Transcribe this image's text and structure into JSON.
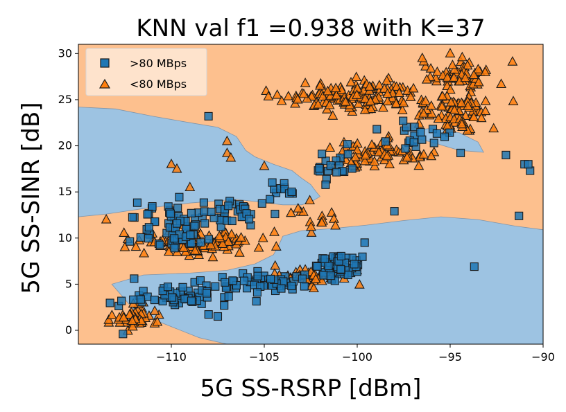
{
  "chart_data": {
    "type": "scatter",
    "title": "KNN val f1 =0.938 with K=37",
    "xlabel": "5G SS-RSRP [dBm]",
    "ylabel": "5G SS-SINR [dB]",
    "xlim": [
      -115,
      -90
    ],
    "ylim": [
      -1.5,
      31
    ],
    "x_ticks": [
      -110,
      -105,
      -100,
      -95,
      -90
    ],
    "y_ticks": [
      0,
      5,
      10,
      15,
      20,
      25,
      30
    ],
    "x_tick_labels": [
      "−110",
      "−105",
      "−100",
      "−95",
      "−90"
    ],
    "y_tick_labels": [
      "0",
      "5",
      "10",
      "15",
      "20",
      "25",
      "30"
    ],
    "grid": false,
    "legend_position": "top-left",
    "colors": {
      "region_high": "#9dc3e2",
      "region_low": "#fdc08e",
      "high_marker": "#1f77b4",
      "low_marker": "#ff7f0e",
      "edge": "#1a1a1a"
    },
    "series": [
      {
        "name": ">80 MBps",
        "marker": "square",
        "clusters": [
          {
            "cx": -110.0,
            "cy": 11.5,
            "sx": 1.4,
            "sy": 2.0,
            "n": 70
          },
          {
            "cx": -106.5,
            "cy": 12.8,
            "sx": 1.0,
            "sy": 0.9,
            "n": 30
          },
          {
            "cx": -109.5,
            "cy": 3.8,
            "sx": 1.5,
            "sy": 1.0,
            "n": 60
          },
          {
            "cx": -105.0,
            "cy": 5.0,
            "sx": 1.5,
            "sy": 0.9,
            "n": 55
          },
          {
            "cx": -101.0,
            "cy": 7.2,
            "sx": 0.8,
            "sy": 1.0,
            "n": 55
          },
          {
            "cx": -101.5,
            "cy": 17.5,
            "sx": 1.0,
            "sy": 1.5,
            "n": 20
          },
          {
            "cx": -97.0,
            "cy": 21.0,
            "sx": 1.5,
            "sy": 1.0,
            "n": 20
          },
          {
            "cx": -104.2,
            "cy": 15.3,
            "sx": 0.6,
            "sy": 0.6,
            "n": 10
          }
        ],
        "points": [
          {
            "x": -108.0,
            "y": 23.2
          },
          {
            "x": -98.0,
            "y": 12.9
          },
          {
            "x": -93.7,
            "y": 6.9
          },
          {
            "x": -92.0,
            "y": 19.0
          },
          {
            "x": -91.0,
            "y": 18.0
          },
          {
            "x": -90.7,
            "y": 17.3
          },
          {
            "x": -90.8,
            "y": 18.0
          },
          {
            "x": -91.3,
            "y": 12.4
          },
          {
            "x": -112.6,
            "y": -0.4
          },
          {
            "x": -112.0,
            "y": 5.6
          },
          {
            "x": -107.5,
            "y": 1.5
          },
          {
            "x": -99.6,
            "y": 9.5
          }
        ]
      },
      {
        "name": "<80 MBps",
        "marker": "triangle",
        "clusters": [
          {
            "cx": -100.0,
            "cy": 25.5,
            "sx": 2.5,
            "sy": 1.2,
            "n": 140
          },
          {
            "cx": -94.5,
            "cy": 27.6,
            "sx": 1.0,
            "sy": 1.0,
            "n": 60
          },
          {
            "cx": -94.5,
            "cy": 23.5,
            "sx": 1.2,
            "sy": 1.2,
            "n": 80
          },
          {
            "cx": -99.0,
            "cy": 19.0,
            "sx": 1.8,
            "sy": 1.0,
            "n": 70
          },
          {
            "cx": -108.5,
            "cy": 9.5,
            "sx": 1.8,
            "sy": 1.0,
            "n": 110
          },
          {
            "cx": -112.0,
            "cy": 1.2,
            "sx": 1.0,
            "sy": 0.8,
            "n": 45
          },
          {
            "cx": -102.5,
            "cy": 5.8,
            "sx": 1.3,
            "sy": 0.8,
            "n": 40
          },
          {
            "cx": -102.5,
            "cy": 12.2,
            "sx": 0.8,
            "sy": 1.2,
            "n": 15
          }
        ],
        "points": [
          {
            "x": -113.5,
            "y": 12.0
          },
          {
            "x": -112.5,
            "y": 9.0
          },
          {
            "x": -107.0,
            "y": 20.5
          },
          {
            "x": -107.0,
            "y": 19.2
          },
          {
            "x": -110.0,
            "y": 18.0
          },
          {
            "x": -109.7,
            "y": 17.5
          },
          {
            "x": -109.0,
            "y": 15.5
          },
          {
            "x": -103.2,
            "y": 25.0
          },
          {
            "x": -102.0,
            "y": 26.5
          },
          {
            "x": -96.5,
            "y": 29.5
          },
          {
            "x": -95.0,
            "y": 30.0
          },
          {
            "x": -105.0,
            "y": 17.8
          },
          {
            "x": -111.5,
            "y": 3.0
          },
          {
            "x": -106.8,
            "y": 18.7
          }
        ]
      }
    ],
    "decision_regions": {
      "background_class": "<80 MBps",
      "regions": [
        {
          "class": ">80 MBps",
          "polygon": [
            [
              -115,
              24.2
            ],
            [
              -113,
              24.0
            ],
            [
              -111,
              23.2
            ],
            [
              -109,
              22.5
            ],
            [
              -107.5,
              22.0
            ],
            [
              -106.5,
              21.0
            ],
            [
              -106,
              19.5
            ],
            [
              -105.5,
              18.8
            ],
            [
              -104.5,
              18.0
            ],
            [
              -103.5,
              17.3
            ],
            [
              -103,
              16.5
            ],
            [
              -102.5,
              15.8
            ],
            [
              -102.2,
              15.0
            ],
            [
              -102,
              14.5
            ],
            [
              -102.5,
              13.9
            ],
            [
              -103,
              13.6
            ],
            [
              -104,
              13.6
            ],
            [
              -106.5,
              14.2
            ],
            [
              -109,
              13.8
            ],
            [
              -111.5,
              13.2
            ],
            [
              -113.5,
              12.6
            ],
            [
              -115,
              12.3
            ]
          ]
        },
        {
          "class": ">80 MBps",
          "polygon": [
            [
              -104.0,
              10.2
            ],
            [
              -103.0,
              10.8
            ],
            [
              -101.5,
              11.0
            ],
            [
              -99.5,
              11.4
            ],
            [
              -97.5,
              11.9
            ],
            [
              -95.5,
              12.3
            ],
            [
              -93.5,
              12.0
            ],
            [
              -91.5,
              11.3
            ],
            [
              -90,
              10.9
            ],
            [
              -90,
              -1.5
            ],
            [
              -107.0,
              -1.5
            ],
            [
              -108.5,
              -0.8
            ],
            [
              -110.5,
              0.8
            ],
            [
              -112.0,
              2.2
            ],
            [
              -113.2,
              5.0
            ],
            [
              -111.5,
              6.0
            ],
            [
              -109.0,
              6.2
            ],
            [
              -107.0,
              6.5
            ],
            [
              -105.5,
              7.2
            ],
            [
              -104.5,
              8.2
            ],
            [
              -104.2,
              9.3
            ]
          ]
        },
        {
          "class": ">80 MBps",
          "polygon": [
            [
              -97.5,
              21.5
            ],
            [
              -96.0,
              21.9
            ],
            [
              -94.5,
              21.4
            ],
            [
              -93.5,
              20.4
            ],
            [
              -93.2,
              19.3
            ],
            [
              -94.5,
              19.5
            ],
            [
              -96.0,
              20.4
            ],
            [
              -97.0,
              20.9
            ]
          ]
        }
      ]
    }
  }
}
